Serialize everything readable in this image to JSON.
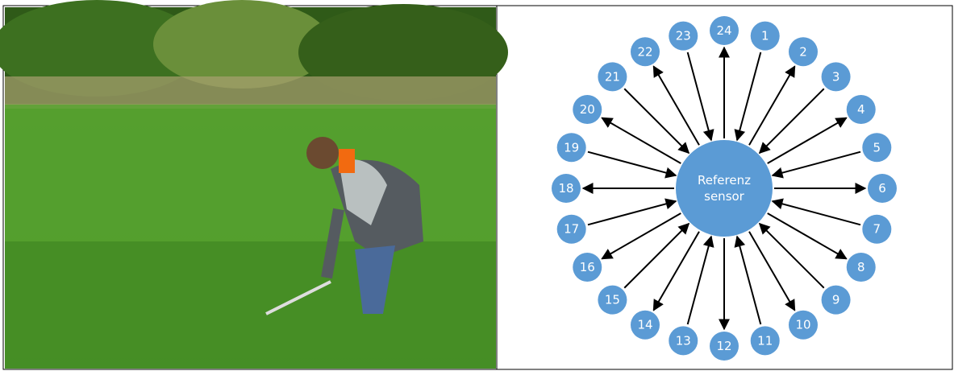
{
  "center": {
    "lines": [
      "Referenz",
      "sensor"
    ]
  },
  "nodes": [
    "1",
    "2",
    "3",
    "4",
    "5",
    "6",
    "7",
    "8",
    "9",
    "10",
    "11",
    "12",
    "13",
    "14",
    "15",
    "16",
    "17",
    "18",
    "19",
    "20",
    "21",
    "22",
    "23",
    "24"
  ]
}
